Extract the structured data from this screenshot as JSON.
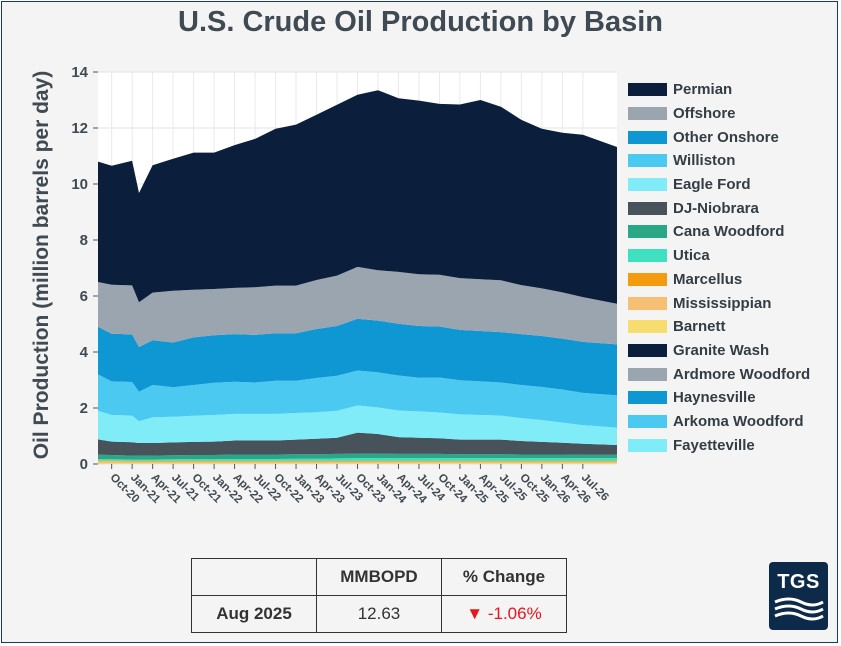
{
  "chart_data": {
    "type": "area",
    "stacked": true,
    "title": "U.S. Crude Oil Production by Basin",
    "xlabel": "",
    "ylabel": "Oil Production (million barrels per day)",
    "ylim": [
      0,
      14
    ],
    "yticks": [
      0,
      2,
      4,
      6,
      8,
      10,
      12,
      14
    ],
    "xlim_months": [
      "2020-08",
      "2026-12"
    ],
    "x_tick_labels": [
      "Oct-20",
      "Jan-21",
      "Apr-21",
      "Jul-21",
      "Oct-21",
      "Jan-22",
      "Apr-22",
      "Jul-22",
      "Oct-22",
      "Jan-23",
      "Apr-23",
      "Jul-23",
      "Oct-23",
      "Jan-24",
      "Apr-24",
      "Jul-24",
      "Oct-24",
      "Jan-25",
      "Apr-25",
      "Jul-25",
      "Oct-25",
      "Jan-26",
      "Apr-26",
      "Jul-26"
    ],
    "x": [
      "Aug-20",
      "Oct-20",
      "Jan-21",
      "Feb-21",
      "Apr-21",
      "Jul-21",
      "Oct-21",
      "Jan-22",
      "Apr-22",
      "Jul-22",
      "Oct-22",
      "Jan-23",
      "Apr-23",
      "Jul-23",
      "Oct-23",
      "Jan-24",
      "Apr-24",
      "Jul-24",
      "Oct-24",
      "Jan-25",
      "Apr-25",
      "Jul-25",
      "Oct-25",
      "Jan-26",
      "Apr-26",
      "Jul-26",
      "Dec-26"
    ],
    "grid": true,
    "legend_position": "right",
    "series": [
      {
        "name": "Fayetteville",
        "color": "#7fecf8",
        "values": [
          0,
          0,
          0,
          0,
          0,
          0,
          0,
          0,
          0,
          0,
          0,
          0,
          0,
          0,
          0,
          0,
          0,
          0,
          0,
          0,
          0,
          0,
          0,
          0,
          0,
          0,
          0
        ]
      },
      {
        "name": "Arkoma Woodford",
        "color": "#4cc9f0",
        "values": [
          0,
          0,
          0,
          0,
          0,
          0,
          0,
          0,
          0,
          0,
          0,
          0,
          0,
          0,
          0,
          0,
          0,
          0,
          0,
          0,
          0,
          0,
          0,
          0,
          0,
          0,
          0
        ]
      },
      {
        "name": "Haynesville",
        "color": "#0f97d4",
        "values": [
          0,
          0,
          0,
          0,
          0,
          0,
          0,
          0,
          0,
          0,
          0,
          0,
          0,
          0,
          0,
          0,
          0,
          0,
          0,
          0,
          0,
          0,
          0,
          0,
          0,
          0,
          0
        ]
      },
      {
        "name": "Ardmore Woodford",
        "color": "#9aa5af",
        "values": [
          0,
          0,
          0,
          0,
          0,
          0,
          0,
          0,
          0,
          0,
          0,
          0,
          0,
          0,
          0,
          0,
          0,
          0,
          0,
          0,
          0,
          0,
          0,
          0,
          0,
          0,
          0
        ]
      },
      {
        "name": "Granite Wash",
        "color": "#0b1f3d",
        "values": [
          0,
          0,
          0,
          0,
          0,
          0,
          0,
          0,
          0,
          0,
          0,
          0,
          0,
          0,
          0,
          0,
          0,
          0,
          0,
          0,
          0,
          0,
          0,
          0,
          0,
          0,
          0
        ]
      },
      {
        "name": "Barnett",
        "color": "#f7dc6f",
        "values": [
          0.02,
          0.02,
          0.02,
          0.02,
          0.02,
          0.02,
          0.02,
          0.02,
          0.02,
          0.02,
          0.02,
          0.02,
          0.02,
          0.02,
          0.02,
          0.02,
          0.02,
          0.02,
          0.02,
          0.02,
          0.02,
          0.02,
          0.02,
          0.02,
          0.02,
          0.02,
          0.02
        ]
      },
      {
        "name": "Mississippian",
        "color": "#f6bf73",
        "values": [
          0.08,
          0.08,
          0.07,
          0.07,
          0.07,
          0.07,
          0.07,
          0.07,
          0.07,
          0.07,
          0.07,
          0.07,
          0.07,
          0.07,
          0.07,
          0.07,
          0.07,
          0.07,
          0.07,
          0.07,
          0.07,
          0.07,
          0.07,
          0.07,
          0.07,
          0.07,
          0.07
        ]
      },
      {
        "name": "Marcellus",
        "color": "#f39c12",
        "values": [
          0.02,
          0.02,
          0.02,
          0.02,
          0.02,
          0.02,
          0.02,
          0.02,
          0.02,
          0.02,
          0.02,
          0.02,
          0.02,
          0.02,
          0.02,
          0.02,
          0.02,
          0.02,
          0.02,
          0.02,
          0.02,
          0.02,
          0.02,
          0.02,
          0.02,
          0.02,
          0.02
        ]
      },
      {
        "name": "Utica",
        "color": "#3ee0c0",
        "values": [
          0.05,
          0.05,
          0.05,
          0.05,
          0.05,
          0.06,
          0.06,
          0.06,
          0.07,
          0.07,
          0.07,
          0.08,
          0.08,
          0.09,
          0.1,
          0.1,
          0.1,
          0.1,
          0.1,
          0.1,
          0.1,
          0.1,
          0.1,
          0.1,
          0.1,
          0.1,
          0.1
        ]
      },
      {
        "name": "Cana Woodford",
        "color": "#2aa784",
        "values": [
          0.16,
          0.15,
          0.14,
          0.14,
          0.14,
          0.14,
          0.15,
          0.15,
          0.16,
          0.16,
          0.16,
          0.16,
          0.16,
          0.16,
          0.16,
          0.16,
          0.15,
          0.15,
          0.15,
          0.14,
          0.14,
          0.14,
          0.13,
          0.13,
          0.13,
          0.12,
          0.12
        ]
      },
      {
        "name": "DJ-Niobrara",
        "color": "#48525b",
        "values": [
          0.55,
          0.48,
          0.48,
          0.45,
          0.45,
          0.46,
          0.47,
          0.48,
          0.5,
          0.5,
          0.5,
          0.52,
          0.55,
          0.58,
          0.75,
          0.7,
          0.6,
          0.58,
          0.56,
          0.52,
          0.52,
          0.52,
          0.48,
          0.45,
          0.42,
          0.39,
          0.35
        ]
      },
      {
        "name": "Eagle Ford",
        "color": "#7fecf8",
        "values": [
          1.02,
          0.95,
          0.95,
          0.78,
          0.92,
          0.92,
          0.93,
          0.95,
          0.95,
          0.95,
          0.95,
          0.95,
          0.95,
          0.96,
          0.97,
          0.95,
          0.95,
          0.94,
          0.92,
          0.9,
          0.88,
          0.86,
          0.82,
          0.78,
          0.72,
          0.67,
          0.62
        ]
      },
      {
        "name": "Williston",
        "color": "#4cc9f0",
        "values": [
          1.3,
          1.2,
          1.2,
          1.05,
          1.15,
          1.05,
          1.1,
          1.15,
          1.15,
          1.12,
          1.18,
          1.15,
          1.22,
          1.25,
          1.25,
          1.25,
          1.25,
          1.2,
          1.25,
          1.22,
          1.2,
          1.18,
          1.18,
          1.18,
          1.18,
          1.15,
          1.15
        ]
      },
      {
        "name": "Other Onshore",
        "color": "#0f97d4",
        "values": [
          1.7,
          1.7,
          1.7,
          1.6,
          1.6,
          1.6,
          1.7,
          1.7,
          1.7,
          1.7,
          1.7,
          1.7,
          1.75,
          1.78,
          1.85,
          1.85,
          1.85,
          1.85,
          1.82,
          1.8,
          1.8,
          1.8,
          1.82,
          1.82,
          1.82,
          1.82,
          1.82
        ]
      },
      {
        "name": "Offshore",
        "color": "#9aa5af",
        "values": [
          1.6,
          1.75,
          1.75,
          1.6,
          1.7,
          1.85,
          1.7,
          1.65,
          1.65,
          1.7,
          1.7,
          1.7,
          1.75,
          1.8,
          1.85,
          1.8,
          1.85,
          1.85,
          1.85,
          1.85,
          1.85,
          1.85,
          1.75,
          1.7,
          1.65,
          1.6,
          1.45
        ]
      },
      {
        "name": "Permian",
        "color": "#0b1f3d",
        "values": [
          4.3,
          4.25,
          4.45,
          3.9,
          4.55,
          4.71,
          4.9,
          4.87,
          5.1,
          5.3,
          5.6,
          5.75,
          5.9,
          6.1,
          6.15,
          6.43,
          6.2,
          6.2,
          6.1,
          6.2,
          6.4,
          6.2,
          5.9,
          5.7,
          5.7,
          5.8,
          5.6
        ]
      }
    ],
    "legend_order": [
      "Permian",
      "Offshore",
      "Other Onshore",
      "Williston",
      "Eagle Ford",
      "DJ-Niobrara",
      "Cana Woodford",
      "Utica",
      "Marcellus",
      "Mississippian",
      "Barnett",
      "Granite Wash",
      "Ardmore Woodford",
      "Haynesville",
      "Arkoma Woodford",
      "Fayetteville"
    ]
  },
  "summary_table": {
    "headers": [
      "",
      "MMBOPD",
      "% Change"
    ],
    "row_label": "Aug 2025",
    "mmbopd": "12.63",
    "arrow": "▼",
    "change": "-1.06%",
    "change_color": "#e8151b"
  },
  "logo": {
    "text": "TGS",
    "bg_color": "#0d2a4a"
  }
}
